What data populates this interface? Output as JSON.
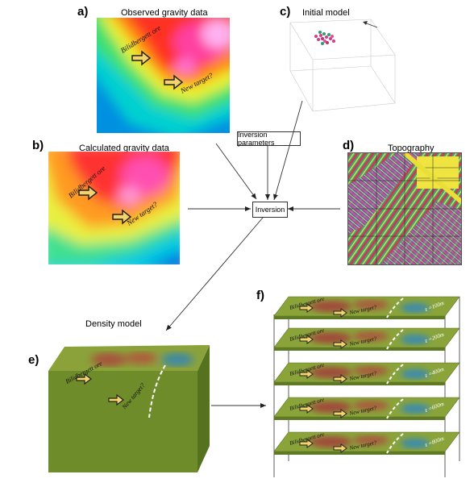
{
  "panels": {
    "a": {
      "letter": "a)",
      "title": "Observed gravity data",
      "label1": "Bilidbergett ore",
      "label2": "New target?"
    },
    "b": {
      "letter": "b)",
      "title": "Calculated gravity data",
      "label1": "Bilidbergett ore",
      "label2": "New target?"
    },
    "c": {
      "letter": "c)",
      "title": "Initial model"
    },
    "d": {
      "letter": "d)",
      "title": "Topography"
    },
    "e": {
      "letter": "e)",
      "title": "Density model",
      "label1": "Bilidbergett ore",
      "label2": "New target?"
    },
    "f": {
      "letter": "f)",
      "slices": [
        {
          "depth": "z =100m",
          "label1": "Bilidbergett ore",
          "label2": "New target?"
        },
        {
          "depth": "z =200m",
          "label1": "Bilidbergett ore",
          "label2": "New target?"
        },
        {
          "depth": "z =400m",
          "label1": "Bilidbergett ore",
          "label2": "New target?"
        },
        {
          "depth": "z =600m",
          "label1": "Bilidbergett ore",
          "label2": "New target?"
        },
        {
          "depth": "z =800m",
          "label1": "Bilidbergett ore",
          "label2": "New target?"
        }
      ]
    }
  },
  "boxes": {
    "inversion_parameters": "Inversion parameters",
    "inversion": "Inversion"
  },
  "colors": {
    "ore_arrow": "#f3d36b",
    "arrow_outline": "#222222",
    "slice_green": "#8aa43a",
    "slice_red": "#a14a3a"
  }
}
